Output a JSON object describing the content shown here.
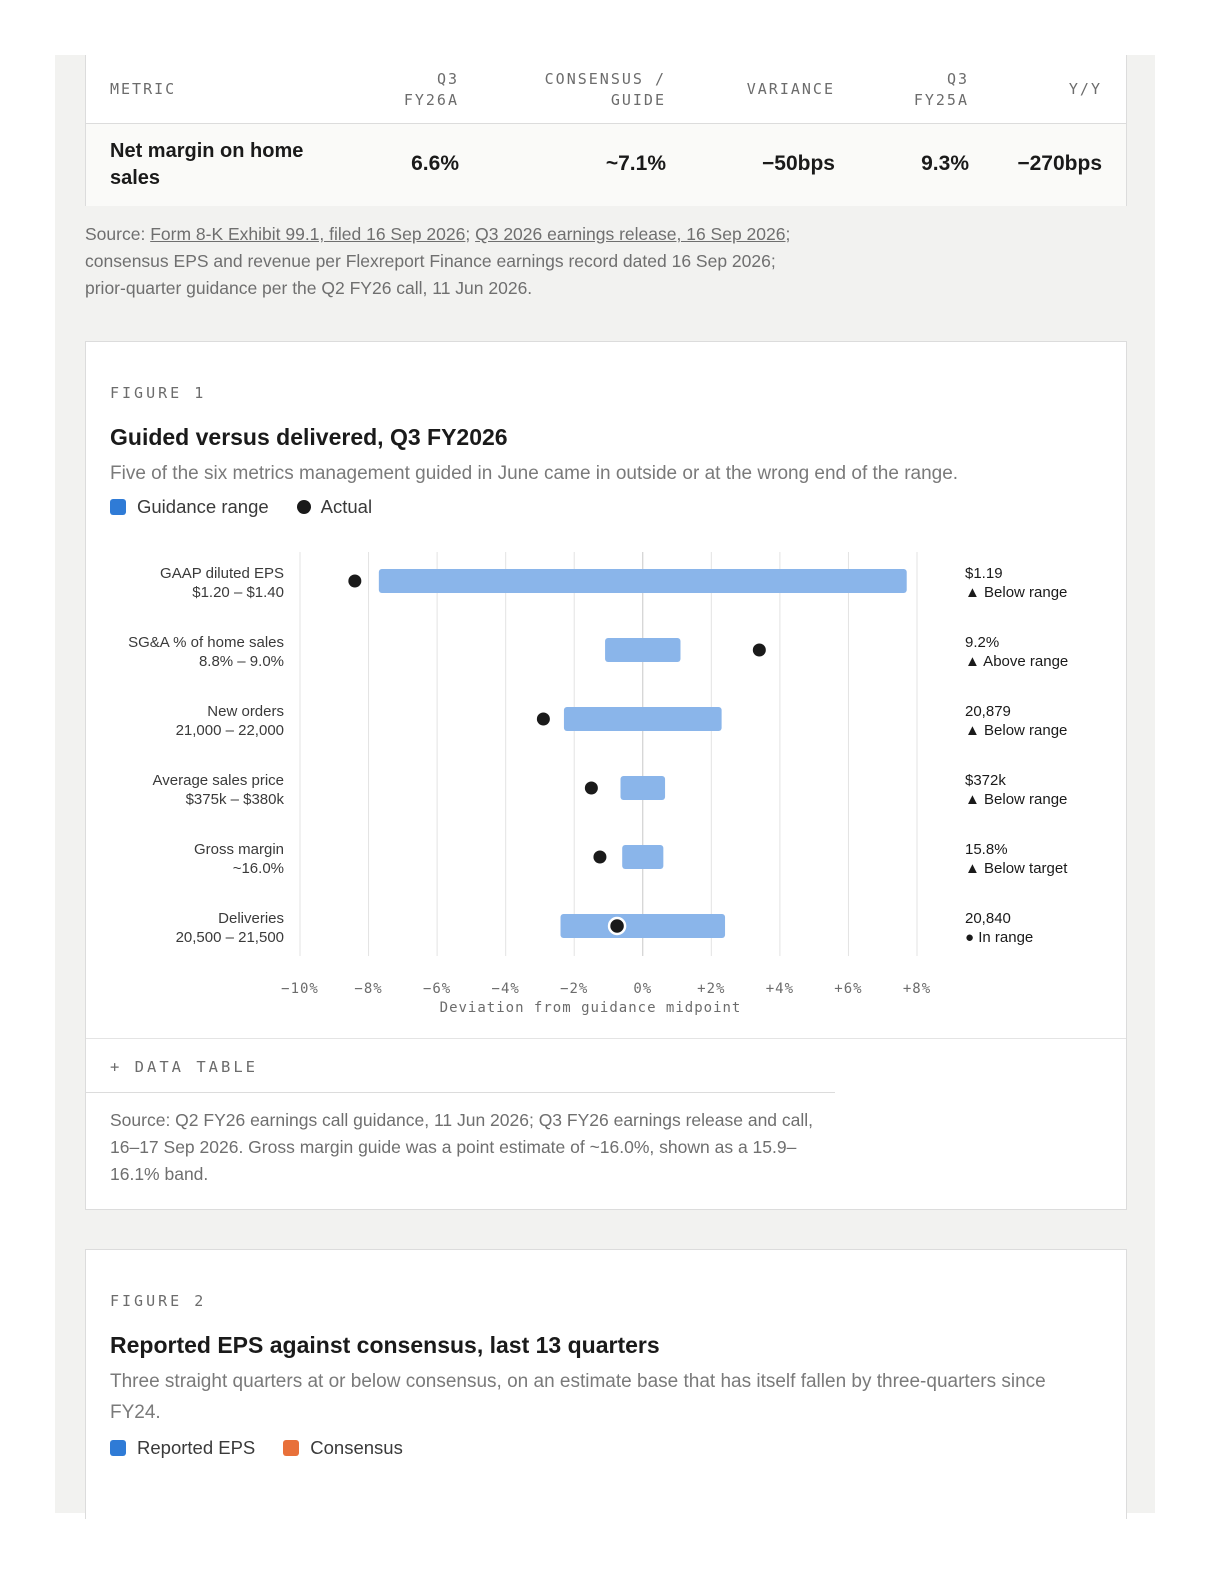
{
  "summary_table": {
    "headers": {
      "metric": "METRIC",
      "actual": [
        "Q3",
        "FY26A"
      ],
      "consensus": [
        "CONSENSUS /",
        "GUIDE"
      ],
      "variance": "VARIANCE",
      "prior": [
        "Q3",
        "FY25A"
      ],
      "yoy": "Y/Y"
    },
    "row": {
      "metric": [
        "Net margin on home",
        "sales"
      ],
      "actual": "6.6%",
      "consensus": "~7.1%",
      "variance": "−50bps",
      "prior": "9.3%",
      "yoy": "−270bps"
    }
  },
  "source_note": {
    "prefix": "Source: ",
    "link1": "Form 8-K Exhibit 99.1, filed 16 Sep 2026",
    "sep": "; ",
    "link2": "Q3 2026 earnings release, 16 Sep 2026",
    "suffix": ";",
    "line2": "consensus EPS and revenue per Flexreport Finance earnings record dated 16 Sep 2026;",
    "line3": "prior-quarter guidance per the Q2 FY26 call, 11 Jun 2026."
  },
  "figure1": {
    "label": "FIGURE 1",
    "title": "Guided versus delivered, Q3 FY2026",
    "subtitle": "Five of the six metrics management guided in June came in outside or at the wrong end of the range.",
    "legend": [
      {
        "label": "Guidance range",
        "color": "#2f7bd6"
      },
      {
        "label": "Actual",
        "color": "#1a1a1a"
      }
    ],
    "data_table_toggle": "+ DATA TABLE",
    "source": "Source: Q2 FY26 earnings call guidance, 11 Jun 2026; Q3 FY26 earnings release and call, 16–17 Sep 2026. Gross margin guide was a point estimate of ~16.0%, shown as a 15.9–16.1% band."
  },
  "chart_data": {
    "type": "range-dot",
    "xlabel": "Deviation from guidance midpoint",
    "xlim": [
      -10,
      8
    ],
    "xticks": [
      {
        "value": -10,
        "label": "−10%"
      },
      {
        "value": -8,
        "label": "−8%"
      },
      {
        "value": -6,
        "label": "−6%"
      },
      {
        "value": -4,
        "label": "−4%"
      },
      {
        "value": -2,
        "label": "−2%"
      },
      {
        "value": 0,
        "label": "0%"
      },
      {
        "value": 2,
        "label": "+2%"
      },
      {
        "value": 4,
        "label": "+4%"
      },
      {
        "value": 6,
        "label": "+6%"
      },
      {
        "value": 8,
        "label": "+8%"
      }
    ],
    "range_color": "#8ab5ea",
    "dot_color": "#1a1a1a",
    "rows": [
      {
        "name": "GAAP diluted EPS",
        "range_label": "$1.20 – $1.40",
        "range_low": -7.7,
        "range_high": 7.7,
        "actual": -8.4,
        "actual_label": "$1.19",
        "status": "▲ Below range"
      },
      {
        "name": "SG&A % of home sales",
        "range_label": "8.8% – 9.0%",
        "range_low": -1.1,
        "range_high": 1.1,
        "actual": 3.4,
        "actual_label": "9.2%",
        "status": "▲ Above range"
      },
      {
        "name": "New orders",
        "range_label": "21,000 – 22,000",
        "range_low": -2.3,
        "range_high": 2.3,
        "actual": -2.9,
        "actual_label": "20,879",
        "status": "▲ Below range"
      },
      {
        "name": "Average sales price",
        "range_label": "$375k – $380k",
        "range_low": -0.65,
        "range_high": 0.65,
        "actual": -1.5,
        "actual_label": "$372k",
        "status": "▲ Below range"
      },
      {
        "name": "Gross margin",
        "range_label": "~16.0%",
        "range_low": -0.6,
        "range_high": 0.6,
        "actual": -1.25,
        "actual_label": "15.8%",
        "status": "▲ Below target"
      },
      {
        "name": "Deliveries",
        "range_label": "20,500 – 21,500",
        "range_low": -2.4,
        "range_high": 2.4,
        "actual": -0.75,
        "actual_label": "20,840",
        "status": "● In range"
      }
    ]
  },
  "figure2": {
    "label": "FIGURE 2",
    "title": "Reported EPS against consensus, last 13 quarters",
    "subtitle": "Three straight quarters at or below consensus, on an estimate base that has itself fallen by three-quarters since FY24.",
    "legend": [
      {
        "label": "Reported EPS",
        "color": "#2f7bd6"
      },
      {
        "label": "Consensus",
        "color": "#e8703a"
      }
    ]
  }
}
